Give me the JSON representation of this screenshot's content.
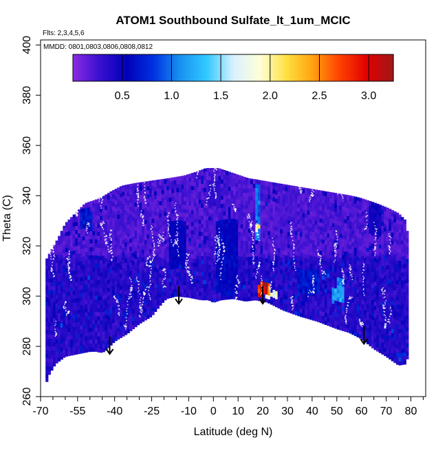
{
  "chart_data": {
    "type": "heatmap",
    "title": "ATOM1 Southbound Sulfate_lt_1um_MCIC",
    "flights_label": "Flts: 2,3,4,5,6",
    "dates_label": "MMDD: 0801,0803,0806,0808,0812",
    "xlabel": "Latitude (deg N)",
    "ylabel": "Theta (C)",
    "xlim": [
      -70,
      86
    ],
    "ylim": [
      260,
      402
    ],
    "x_ticks": [
      -70,
      -55,
      -40,
      -25,
      -10,
      0,
      10,
      20,
      30,
      40,
      50,
      60,
      70,
      80
    ],
    "x_tick_labels": [
      "-70",
      "-55",
      "-40",
      "-25",
      "-10",
      "0",
      "10",
      "20",
      "30",
      "40",
      "50",
      "60",
      "70",
      "80"
    ],
    "x_minor_ticks": [
      -65,
      -60,
      -50,
      -45,
      -35,
      -30,
      -20,
      -15,
      -5,
      5,
      15,
      25,
      35,
      45,
      55,
      65,
      75,
      85
    ],
    "y_ticks": [
      260,
      280,
      300,
      320,
      340,
      360,
      380,
      400
    ],
    "y_tick_labels": [
      "260",
      "280",
      "300",
      "320",
      "340",
      "360",
      "380",
      "400"
    ],
    "colorbar": {
      "range": [
        0,
        3.25
      ],
      "ticks": [
        0.5,
        1.0,
        1.5,
        2.0,
        2.5,
        3.0
      ],
      "tick_labels": [
        "0.5",
        "1.0",
        "1.5",
        "2.0",
        "2.5",
        "3.0"
      ],
      "colors": [
        "#8A2BE2",
        "#3A10D0",
        "#0000B8",
        "#0030E0",
        "#1890F0",
        "#30C8FF",
        "#D8F0FF",
        "#FFFFD8",
        "#FFE040",
        "#FFA010",
        "#FF4000",
        "#E00000",
        "#A01818"
      ]
    },
    "lower_boundary": [
      [
        -68,
        264
      ],
      [
        -67,
        268
      ],
      [
        -64,
        273
      ],
      [
        -60,
        276
      ],
      [
        -55,
        277
      ],
      [
        -50,
        278
      ],
      [
        -47,
        278
      ],
      [
        -46,
        277.5
      ],
      [
        -44,
        278
      ],
      [
        -40,
        282
      ],
      [
        -35,
        285
      ],
      [
        -30,
        289
      ],
      [
        -25,
        292
      ],
      [
        -21,
        297
      ],
      [
        -19,
        299
      ],
      [
        -15,
        300
      ],
      [
        -10,
        299.5
      ],
      [
        -5,
        298.5
      ],
      [
        -2,
        298.5
      ],
      [
        0,
        297.5
      ],
      [
        3,
        298.5
      ],
      [
        8,
        299
      ],
      [
        13,
        298
      ],
      [
        17,
        298.5
      ],
      [
        22,
        297.5
      ],
      [
        28,
        294.5
      ],
      [
        35,
        292
      ],
      [
        42,
        290
      ],
      [
        50,
        287
      ],
      [
        55,
        285.5
      ],
      [
        60,
        283
      ],
      [
        65,
        279
      ],
      [
        70,
        276
      ],
      [
        75,
        272.5
      ],
      [
        78,
        273
      ],
      [
        79,
        277
      ]
    ],
    "upper_boundary": [
      [
        -68,
        314
      ],
      [
        -67,
        316
      ],
      [
        -63,
        323
      ],
      [
        -60,
        329
      ],
      [
        -56,
        333
      ],
      [
        -52,
        337
      ],
      [
        -46,
        339
      ],
      [
        -41,
        342
      ],
      [
        -37,
        344
      ],
      [
        -32,
        345
      ],
      [
        -25,
        346
      ],
      [
        -18,
        347
      ],
      [
        -12,
        348
      ],
      [
        -7,
        349.5
      ],
      [
        -3,
        351
      ],
      [
        2,
        351
      ],
      [
        8,
        349
      ],
      [
        14,
        347
      ],
      [
        20,
        346
      ],
      [
        26,
        345
      ],
      [
        32,
        344
      ],
      [
        38,
        343
      ],
      [
        44,
        342
      ],
      [
        50,
        341
      ],
      [
        56,
        340
      ],
      [
        60,
        339
      ],
      [
        66,
        337
      ],
      [
        71,
        335
      ],
      [
        75,
        333
      ],
      [
        78,
        330
      ],
      [
        79,
        322
      ],
      [
        79,
        300
      ],
      [
        79,
        277
      ]
    ],
    "hotspots": [
      {
        "x": 20,
        "y": 302,
        "w": 6,
        "h": 5,
        "value": 3.1
      },
      {
        "x": 23,
        "y": 300,
        "w": 6,
        "h": 3,
        "value": 2.0
      },
      {
        "x": 20,
        "y": 303,
        "w": 3,
        "h": 2,
        "value": 3.2
      },
      {
        "x": 17.5,
        "y": 333,
        "w": 2.2,
        "h": 22,
        "value": 1.0
      },
      {
        "x": 17.5,
        "y": 327,
        "w": 1.5,
        "h": 3,
        "value": 2.2
      },
      {
        "x": 50,
        "y": 300,
        "w": 6,
        "h": 6,
        "value": 1.2
      },
      {
        "x": 51,
        "y": 305,
        "w": 4,
        "h": 3,
        "value": 1.1
      },
      {
        "x": 45,
        "y": 308,
        "w": 3,
        "h": 3,
        "value": 0.85
      },
      {
        "x": -52,
        "y": 330,
        "w": 5,
        "h": 8,
        "value": 0.7
      },
      {
        "x": -62,
        "y": 300,
        "w": 6,
        "h": 10,
        "value": 0.25
      },
      {
        "x": -30,
        "y": 300,
        "w": 12,
        "h": 10,
        "value": 0.35
      },
      {
        "x": -15,
        "y": 320,
        "w": 8,
        "h": 20,
        "value": 0.55
      },
      {
        "x": 5,
        "y": 315,
        "w": 10,
        "h": 30,
        "value": 0.6
      },
      {
        "x": 0,
        "y": 340,
        "w": 6,
        "h": 10,
        "value": 0.35
      },
      {
        "x": 38,
        "y": 305,
        "w": 10,
        "h": 10,
        "value": 0.7
      },
      {
        "x": 65,
        "y": 330,
        "w": 6,
        "h": 12,
        "value": 0.5
      },
      {
        "x": 30,
        "y": 330,
        "w": 8,
        "h": 20,
        "value": 0.2
      }
    ],
    "arrows": [
      {
        "x": -42,
        "y_top": 284,
        "y_tip": 277
      },
      {
        "x": -14,
        "y_top": 304,
        "y_tip": 297
      },
      {
        "x": 20,
        "y_top": 304,
        "y_tip": 297
      },
      {
        "x": 61,
        "y_top": 288,
        "y_tip": 281
      }
    ]
  }
}
